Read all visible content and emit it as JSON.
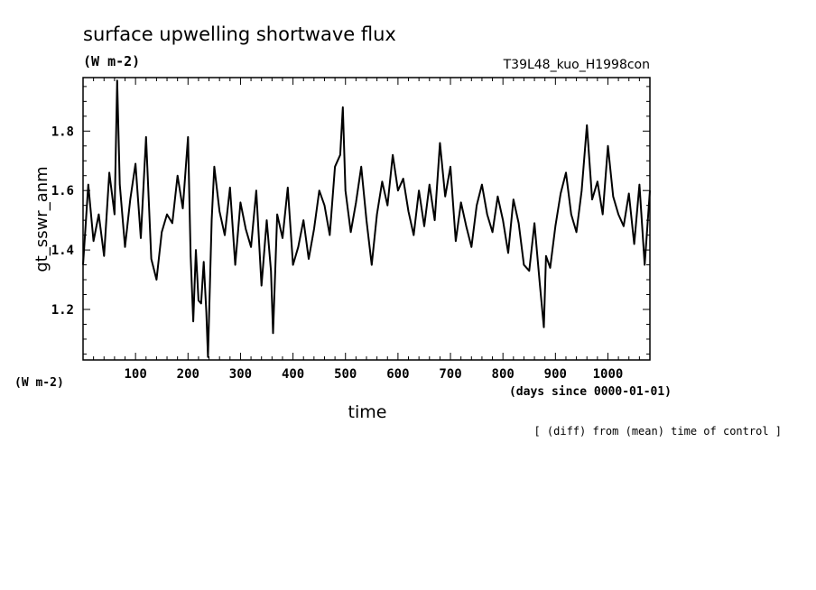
{
  "chart_data": {
    "type": "line",
    "title": "surface upwelling shortwave flux",
    "title_units": "(W m-2)",
    "experiment": "T39L48_kuo_H1998con",
    "ylabel": "gt_sswr_anm",
    "yunits": "(W m-2)",
    "xlabel": "time",
    "xunits": "(days since 0000-01-01)",
    "note": "[ (diff) from (mean) time of control ]",
    "xlim": [
      0,
      1080
    ],
    "ylim": [
      1.03,
      1.98
    ],
    "x_ticks": [
      100,
      200,
      300,
      400,
      500,
      600,
      700,
      800,
      900,
      1000
    ],
    "y_ticks": [
      1.2,
      1.4,
      1.6,
      1.8
    ],
    "y_tick_labels": [
      "1.2",
      "1.4",
      "1.6",
      "1.8"
    ],
    "grid": false,
    "line_color": "#000000",
    "series": [
      {
        "x": [
          0,
          10,
          20,
          30,
          40,
          50,
          60,
          65,
          70,
          80,
          90,
          100,
          110,
          120,
          130,
          140,
          150,
          160,
          170,
          180,
          190,
          200,
          205,
          210,
          215,
          220,
          225,
          230,
          235,
          238,
          245,
          250,
          260,
          270,
          280,
          290,
          300,
          310,
          320,
          330,
          340,
          350,
          358,
          362,
          370,
          380,
          390,
          400,
          410,
          420,
          430,
          440,
          450,
          460,
          470,
          480,
          490,
          495,
          500,
          510,
          520,
          530,
          540,
          550,
          560,
          570,
          580,
          590,
          600,
          610,
          620,
          630,
          640,
          650,
          660,
          670,
          680,
          690,
          700,
          710,
          720,
          730,
          740,
          750,
          760,
          770,
          780,
          790,
          800,
          810,
          820,
          830,
          840,
          850,
          860,
          870,
          878,
          882,
          890,
          900,
          910,
          920,
          930,
          940,
          950,
          960,
          970,
          980,
          990,
          1000,
          1010,
          1020,
          1030,
          1040,
          1050,
          1060,
          1070,
          1080
        ],
        "y": [
          1.35,
          1.62,
          1.43,
          1.52,
          1.38,
          1.66,
          1.52,
          1.97,
          1.62,
          1.41,
          1.57,
          1.69,
          1.44,
          1.78,
          1.37,
          1.3,
          1.46,
          1.52,
          1.49,
          1.65,
          1.54,
          1.78,
          1.38,
          1.16,
          1.4,
          1.23,
          1.22,
          1.36,
          1.19,
          1.04,
          1.5,
          1.68,
          1.53,
          1.45,
          1.61,
          1.35,
          1.56,
          1.47,
          1.41,
          1.6,
          1.28,
          1.5,
          1.33,
          1.12,
          1.52,
          1.44,
          1.61,
          1.35,
          1.41,
          1.5,
          1.37,
          1.47,
          1.6,
          1.55,
          1.45,
          1.68,
          1.72,
          1.88,
          1.6,
          1.46,
          1.56,
          1.68,
          1.5,
          1.35,
          1.52,
          1.63,
          1.55,
          1.72,
          1.6,
          1.64,
          1.53,
          1.45,
          1.6,
          1.48,
          1.62,
          1.5,
          1.76,
          1.58,
          1.68,
          1.43,
          1.56,
          1.48,
          1.41,
          1.55,
          1.62,
          1.52,
          1.46,
          1.58,
          1.5,
          1.39,
          1.57,
          1.49,
          1.35,
          1.33,
          1.49,
          1.29,
          1.14,
          1.38,
          1.34,
          1.48,
          1.59,
          1.66,
          1.52,
          1.46,
          1.6,
          1.82,
          1.57,
          1.63,
          1.52,
          1.75,
          1.58,
          1.52,
          1.48,
          1.59,
          1.42,
          1.62,
          1.35,
          1.6
        ]
      }
    ]
  }
}
